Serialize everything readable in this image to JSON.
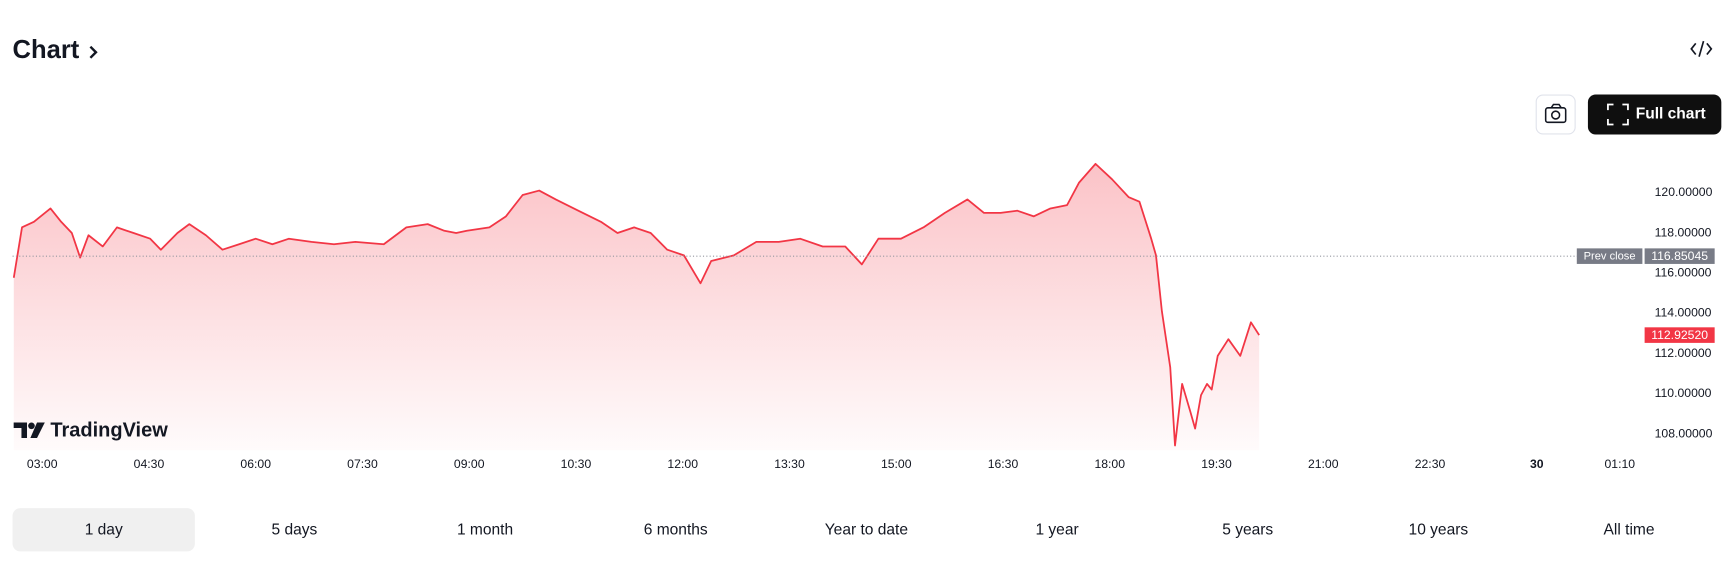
{
  "header": {
    "title": "Chart"
  },
  "full_chart_button": "Full chart",
  "watermark": "TradingView",
  "chart_data": {
    "type": "area",
    "color": "#f23645",
    "x": [
      156,
      163,
      173,
      187,
      196,
      205,
      212,
      219,
      231,
      243,
      257,
      271,
      280,
      294,
      304,
      318,
      332,
      346,
      360,
      374,
      388,
      407,
      426,
      444,
      468,
      487,
      505,
      519,
      529,
      538,
      557,
      571,
      585,
      599,
      613,
      632,
      651,
      665,
      679,
      693,
      707,
      721,
      735,
      744,
      763,
      782,
      801,
      819,
      838,
      857,
      871,
      885,
      904,
      923,
      941,
      960,
      974,
      988,
      1002,
      1016,
      1030,
      1044,
      1054,
      1068,
      1082,
      1096,
      1105,
      1115,
      1119,
      1124,
      1131,
      1135,
      1141,
      1148,
      1152,
      1157,
      1162,
      1166,
      1171,
      1180,
      1190,
      1199,
      1206
    ],
    "values": [
      115.78,
      118.28,
      118.56,
      119.22,
      118.56,
      118.0,
      116.78,
      117.89,
      117.33,
      118.28,
      118.0,
      117.72,
      117.17,
      118.0,
      118.44,
      117.89,
      117.17,
      117.44,
      117.72,
      117.44,
      117.72,
      117.56,
      117.44,
      117.56,
      117.44,
      118.28,
      118.44,
      118.11,
      118.0,
      118.11,
      118.28,
      118.83,
      119.89,
      120.11,
      119.67,
      119.11,
      118.56,
      118.0,
      118.28,
      118.0,
      117.17,
      116.89,
      115.5,
      116.61,
      116.89,
      117.56,
      117.56,
      117.72,
      117.33,
      117.33,
      116.44,
      117.72,
      117.72,
      118.28,
      119.0,
      119.67,
      119.0,
      119.0,
      119.11,
      118.83,
      119.22,
      119.39,
      120.5,
      121.44,
      120.67,
      119.78,
      119.56,
      117.72,
      116.89,
      114.11,
      111.33,
      107.44,
      110.5,
      109.11,
      108.28,
      109.94,
      110.5,
      110.22,
      111.89,
      112.72,
      111.89,
      113.56,
      112.9252
    ],
    "xlim": [
      155,
      1530
    ],
    "xticks": [
      {
        "value": 180,
        "label": "03:00"
      },
      {
        "value": 270,
        "label": "04:30"
      },
      {
        "value": 360,
        "label": "06:00"
      },
      {
        "value": 450,
        "label": "07:30"
      },
      {
        "value": 540,
        "label": "09:00"
      },
      {
        "value": 630,
        "label": "10:30"
      },
      {
        "value": 720,
        "label": "12:00"
      },
      {
        "value": 810,
        "label": "13:30"
      },
      {
        "value": 900,
        "label": "15:00"
      },
      {
        "value": 990,
        "label": "16:30"
      },
      {
        "value": 1080,
        "label": "18:00"
      },
      {
        "value": 1170,
        "label": "19:30"
      },
      {
        "value": 1260,
        "label": "21:00"
      },
      {
        "value": 1350,
        "label": "22:30"
      },
      {
        "value": 1440,
        "label": "30"
      },
      {
        "value": 1510,
        "label": "01:10"
      }
    ],
    "ylim": [
      107.2,
      122.4
    ],
    "yticks": [
      {
        "value": 108,
        "label": "108.00000"
      },
      {
        "value": 110,
        "label": "110.00000"
      },
      {
        "value": 112,
        "label": "112.00000"
      },
      {
        "value": 114,
        "label": "114.00000"
      },
      {
        "value": 116,
        "label": "116.00000"
      },
      {
        "value": 118,
        "label": "118.00000"
      },
      {
        "value": 120,
        "label": "120.00000"
      }
    ],
    "prev_close": {
      "label": "Prev close",
      "value": 116.85045
    },
    "last_value": {
      "value": 112.9252,
      "label": "112.92520"
    }
  },
  "ranges": [
    "1 day",
    "5 days",
    "1 month",
    "6 months",
    "Year to date",
    "1 year",
    "5 years",
    "10 years",
    "All time"
  ],
  "selected_range": 0
}
